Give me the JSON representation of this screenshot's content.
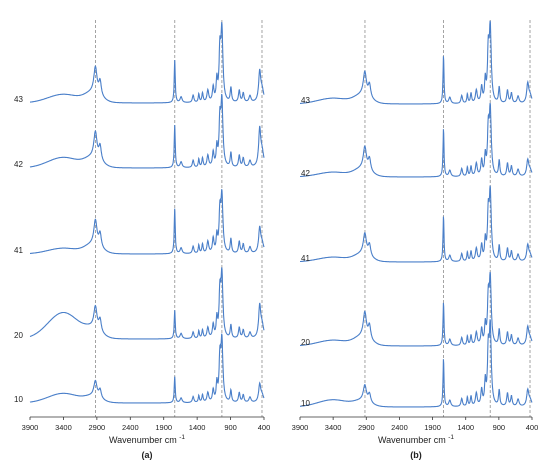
{
  "chart_data": [
    {
      "type": "line",
      "panel_label": "(a)",
      "xlabel": "Wavenumber cm",
      "xlabel_superscript": "-1",
      "x_ticks": [
        3900,
        3400,
        2900,
        2400,
        1900,
        1400,
        900,
        400
      ],
      "xlim": [
        3900,
        400
      ],
      "x_reversed": true,
      "grid": false,
      "reference_lines": [
        2920,
        1735,
        1030,
        430
      ],
      "series": [
        {
          "name": "43",
          "profile": {
            "p2920": 1.0,
            "p1735": 0.9,
            "p1030": 1.75,
            "p430": 0.85,
            "fingerprint": 0.55,
            "broadOH": 0.18
          }
        },
        {
          "name": "42",
          "profile": {
            "p2920": 1.0,
            "p1735": 0.9,
            "p1030": 1.6,
            "p430": 1.05,
            "fingerprint": 0.55,
            "broadOH": 0.22
          }
        },
        {
          "name": "41",
          "profile": {
            "p2920": 0.95,
            "p1735": 0.95,
            "p1030": 1.4,
            "p430": 0.7,
            "fingerprint": 0.55,
            "broadOH": 0.12
          }
        },
        {
          "name": "20",
          "profile": {
            "p2920": 0.85,
            "p1735": 0.6,
            "p1030": 1.55,
            "p430": 0.9,
            "fingerprint": 0.5,
            "broadOH": 0.55
          }
        },
        {
          "name": "10",
          "profile": {
            "p2920": 0.6,
            "p1735": 0.55,
            "p1030": 1.5,
            "p430": 0.5,
            "fingerprint": 0.45,
            "broadOH": 0.2
          }
        }
      ]
    },
    {
      "type": "line",
      "panel_label": "(b)",
      "xlabel": "Wavenumber cm",
      "xlabel_superscript": "-1",
      "x_ticks": [
        3900,
        3400,
        2900,
        2400,
        1900,
        1400,
        900,
        400
      ],
      "xlim": [
        3900,
        400
      ],
      "x_reversed": true,
      "grid": false,
      "reference_lines": [
        2920,
        1735,
        1030,
        430
      ],
      "series": [
        {
          "name": "43",
          "profile": {
            "p2920": 0.9,
            "p1735": 1.0,
            "p1030": 1.8,
            "p430": 0.55,
            "fingerprint": 0.6,
            "broadOH": 0.12
          }
        },
        {
          "name": "42",
          "profile": {
            "p2920": 0.85,
            "p1735": 1.0,
            "p1030": 1.6,
            "p430": 0.45,
            "fingerprint": 0.6,
            "broadOH": 0.1
          }
        },
        {
          "name": "41",
          "profile": {
            "p2920": 0.8,
            "p1735": 0.95,
            "p1030": 1.65,
            "p430": 0.45,
            "fingerprint": 0.6,
            "broadOH": 0.1
          }
        },
        {
          "name": "20",
          "profile": {
            "p2920": 0.95,
            "p1735": 0.9,
            "p1030": 1.6,
            "p430": 0.5,
            "fingerprint": 0.6,
            "broadOH": 0.12
          }
        },
        {
          "name": "10",
          "profile": {
            "p2920": 0.6,
            "p1735": 1.0,
            "p1030": 1.9,
            "p430": 0.45,
            "fingerprint": 0.6,
            "broadOH": 0.15
          }
        }
      ]
    }
  ],
  "colors": {
    "spectrum": "#4a7fc9",
    "reference_line": "#9a9a9a",
    "axis": "#333333"
  }
}
